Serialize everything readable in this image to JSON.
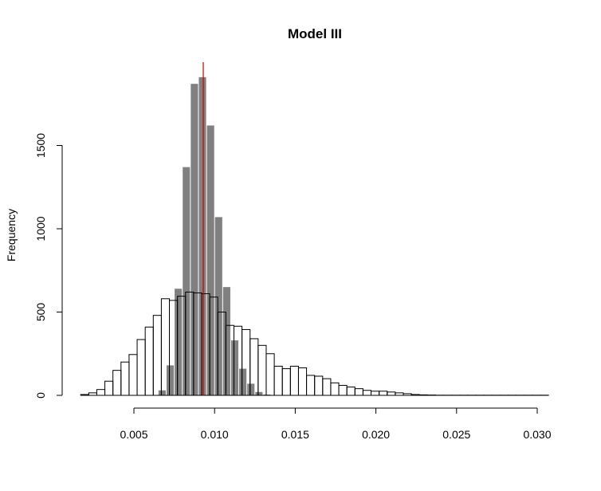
{
  "chart_data": {
    "type": "histogram",
    "title": "Model III",
    "xlabel": "",
    "ylabel": "Frequency",
    "xlim": [
      0.0015,
      0.0307
    ],
    "ylim": [
      0,
      2000
    ],
    "x_ticks": [
      0.005,
      0.01,
      0.015,
      0.02,
      0.025,
      0.03
    ],
    "x_tick_labels": [
      "0.005",
      "0.010",
      "0.015",
      "0.020",
      "0.025",
      "0.030"
    ],
    "y_ticks": [
      0,
      500,
      1000,
      1500
    ],
    "y_tick_labels": [
      "0",
      "500",
      "1000",
      "1500"
    ],
    "grid": false,
    "reference_line": {
      "x": 0.0093,
      "color": "#cc0000"
    },
    "series": [
      {
        "style": "filled",
        "fill": "#808080",
        "bin_width": 0.0005,
        "bin_starts": [
          0.0065,
          0.007,
          0.0075,
          0.008,
          0.0085,
          0.009,
          0.0095,
          0.01,
          0.0105,
          0.011,
          0.0115,
          0.012,
          0.0125,
          0.013
        ],
        "values": [
          30,
          180,
          640,
          1370,
          1870,
          1910,
          1620,
          1070,
          650,
          330,
          160,
          70,
          20,
          5
        ]
      },
      {
        "style": "outline",
        "fill": "none",
        "stroke": "#000000",
        "bin_width": 0.0005,
        "bin_starts": [
          0.0017,
          0.0022,
          0.0027,
          0.0032,
          0.0037,
          0.0042,
          0.0047,
          0.0052,
          0.0057,
          0.0062,
          0.0067,
          0.0072,
          0.0077,
          0.0082,
          0.0087,
          0.0092,
          0.0097,
          0.0102,
          0.0107,
          0.0112,
          0.0117,
          0.0122,
          0.0127,
          0.0132,
          0.0137,
          0.0142,
          0.0147,
          0.0152,
          0.0157,
          0.0162,
          0.0167,
          0.0172,
          0.0177,
          0.0182,
          0.0187,
          0.0192,
          0.0197,
          0.0202,
          0.0207,
          0.0212,
          0.0217,
          0.0222,
          0.0227,
          0.0232,
          0.0237,
          0.0242,
          0.0247,
          0.0252,
          0.0257,
          0.0262,
          0.0267,
          0.0272,
          0.0277,
          0.0282,
          0.0287,
          0.0292,
          0.0297,
          0.0302
        ],
        "values": [
          5,
          15,
          35,
          85,
          150,
          200,
          245,
          335,
          410,
          480,
          580,
          570,
          595,
          620,
          615,
          610,
          590,
          500,
          420,
          415,
          395,
          340,
          300,
          250,
          175,
          160,
          175,
          165,
          120,
          115,
          100,
          75,
          60,
          50,
          40,
          30,
          25,
          25,
          20,
          15,
          10,
          5,
          3,
          2,
          1,
          1,
          1,
          1,
          1,
          1,
          1,
          1,
          1,
          1,
          1,
          1,
          1,
          1
        ]
      }
    ]
  }
}
